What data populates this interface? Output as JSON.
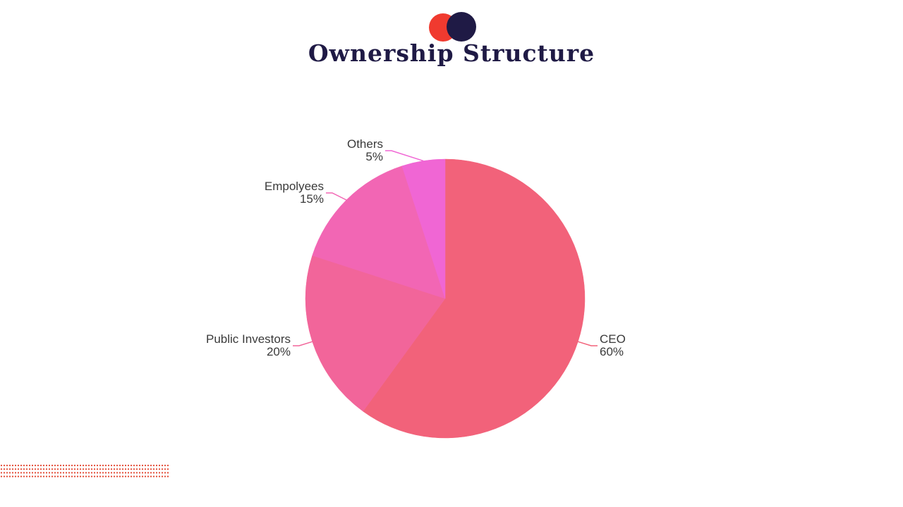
{
  "slide": {
    "title": "Ownership Structure",
    "accent_red": "#f03a2f",
    "accent_navy": "#1f1a45",
    "dot_pattern_color": "#e2452f"
  },
  "chart_data": {
    "type": "pie",
    "title": "",
    "slices": [
      {
        "label": "CEO",
        "value": 60,
        "value_label": "60%",
        "color": "#f2627a"
      },
      {
        "label": "Public Investors",
        "value": 20,
        "value_label": "20%",
        "color": "#f2659a"
      },
      {
        "label": "Empolyees",
        "value": 15,
        "value_label": "15%",
        "color": "#f266b4"
      },
      {
        "label": "Others",
        "value": 5,
        "value_label": "5%",
        "color": "#f066d4"
      }
    ],
    "start": "12 o'clock",
    "direction": "clockwise",
    "legend": "none (outside slice labels with leader lines)"
  }
}
